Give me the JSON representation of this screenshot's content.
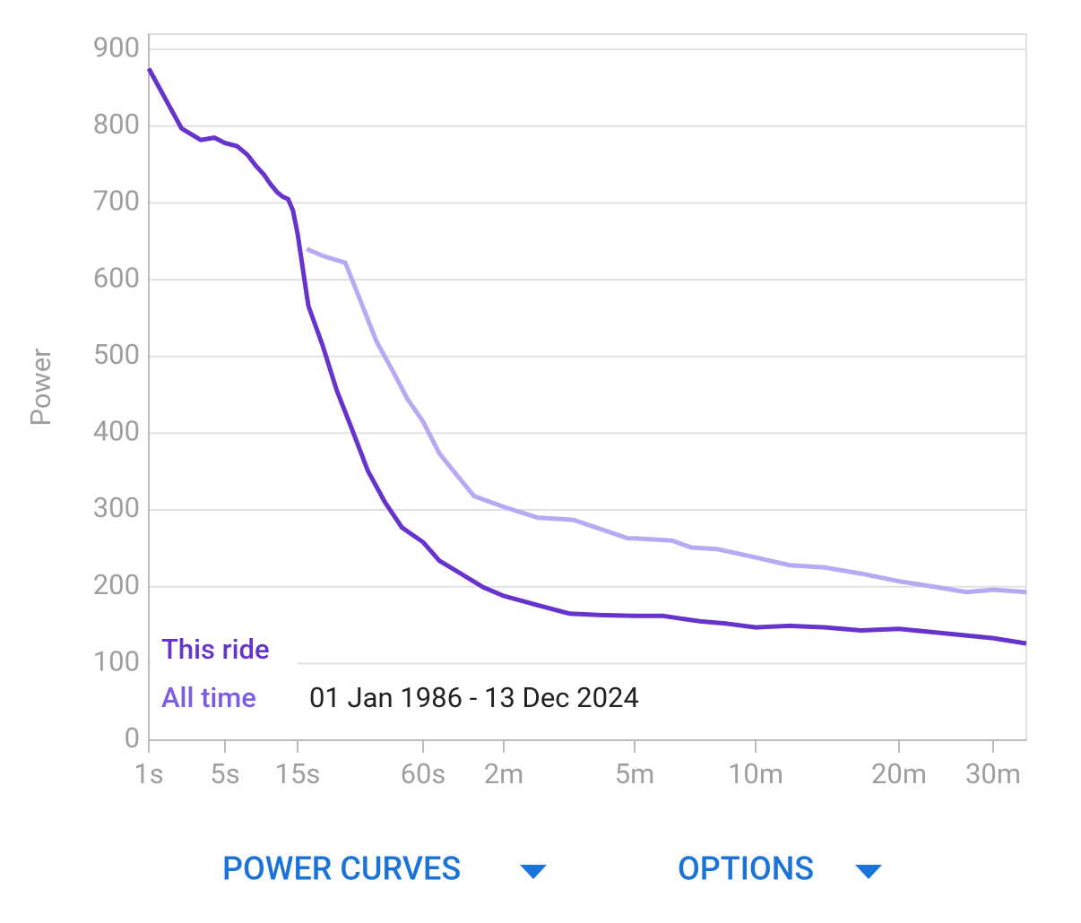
{
  "chart_data": {
    "type": "line",
    "y_label": "Power",
    "x_scale": "log",
    "xlim": [
      1,
      2100
    ],
    "xticks": [
      {
        "value": 1,
        "label": "1s"
      },
      {
        "value": 5,
        "label": "5s"
      },
      {
        "value": 15,
        "label": "15s"
      },
      {
        "value": 60,
        "label": "60s"
      },
      {
        "value": 120,
        "label": "2m"
      },
      {
        "value": 300,
        "label": "5m"
      },
      {
        "value": 600,
        "label": "10m"
      },
      {
        "value": 1200,
        "label": "20m"
      },
      {
        "value": 1800,
        "label": "30m"
      }
    ],
    "ylim": [
      0,
      920
    ],
    "yticks": [
      0,
      100,
      200,
      300,
      400,
      500,
      600,
      700,
      800,
      900
    ],
    "grid": true,
    "legend": "bottom-left",
    "annotation": "01 Jan 1986 - 13 Dec 2024",
    "series": [
      {
        "name": "This ride",
        "color": "#6633cc",
        "legend_color": "#6633cc",
        "x": [
          1,
          2,
          3,
          4,
          5,
          6,
          7,
          8,
          9,
          10,
          11,
          12,
          13,
          14,
          15,
          16.9,
          19.8,
          23.1,
          27,
          32.6,
          39.4,
          47.5,
          60,
          68.9,
          83,
          101,
          120,
          152,
          190,
          237,
          300,
          352,
          434,
          506,
          600,
          706,
          840,
          998,
          1200,
          1425,
          1800,
          2100
        ],
        "values": [
          875,
          797,
          782,
          785,
          778,
          774,
          763,
          748,
          737,
          724,
          714,
          708,
          705,
          690,
          660,
          566,
          514,
          456,
          409,
          351,
          310,
          277,
          258,
          234,
          217,
          199,
          188,
          176,
          165,
          163,
          162,
          162,
          155,
          152,
          147,
          149,
          147,
          143,
          145,
          140,
          133,
          126
        ]
      },
      {
        "name": "All time",
        "color": "#b8aaf2",
        "legend_color": "#7b5ce6",
        "x": [
          16.6,
          19.8,
          25.4,
          29.5,
          35.8,
          43.3,
          50.6,
          60,
          68.9,
          83,
          93,
          120,
          152,
          196,
          237,
          286,
          300,
          372,
          415,
          481,
          600,
          706,
          840,
          998,
          1200,
          1425,
          1600,
          1800,
          2100
        ],
        "values": [
          640,
          631,
          622,
          578,
          520,
          479,
          444,
          415,
          374,
          339,
          318,
          304,
          290,
          287,
          275,
          263,
          263,
          260,
          251,
          249,
          238,
          228,
          225,
          217,
          207,
          199,
          193,
          196,
          193
        ]
      }
    ]
  },
  "buttons": [
    "POWER CURVES",
    "OPTIONS"
  ]
}
